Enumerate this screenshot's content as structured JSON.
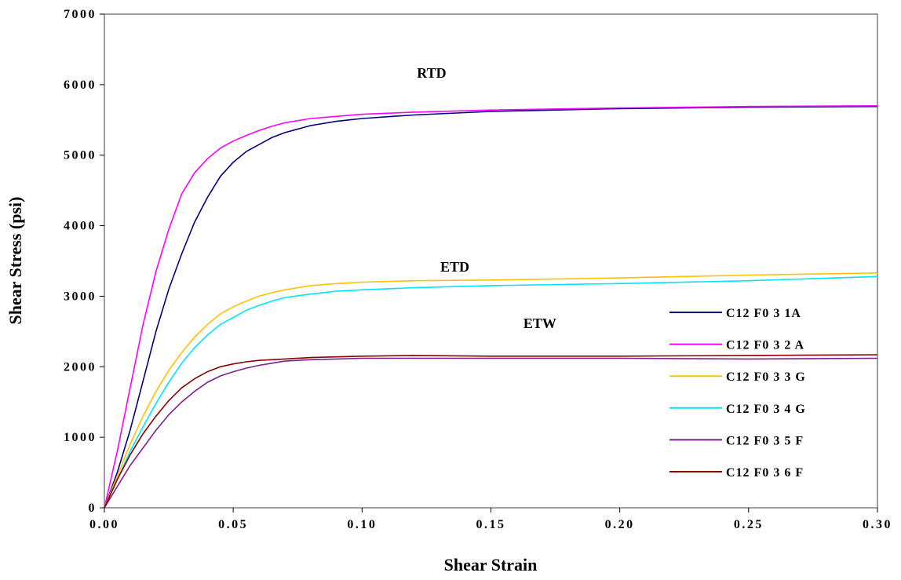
{
  "chart_data": {
    "type": "line",
    "title": "",
    "xlabel": "Shear Strain",
    "ylabel": "Shear Stress (psi)",
    "xlim": [
      0,
      0.3
    ],
    "ylim": [
      0,
      7000
    ],
    "x_ticks": [
      0,
      0.05,
      0.1,
      0.15,
      0.2,
      0.25,
      0.3
    ],
    "x_tick_labels": [
      "0.00",
      "0.05",
      "0.10",
      "0.15",
      "0.20",
      "0.25",
      "0.30"
    ],
    "y_ticks": [
      0,
      1000,
      2000,
      3000,
      4000,
      5000,
      6000,
      7000
    ],
    "y_tick_labels": [
      "0",
      "1000",
      "2000",
      "3000",
      "4000",
      "5000",
      "6000",
      "7000"
    ],
    "grid": false,
    "legend_position": "right",
    "annotations": [
      {
        "text": "RTD",
        "x": 0.127,
        "y": 6100
      },
      {
        "text": "ETD",
        "x": 0.136,
        "y": 3350
      },
      {
        "text": "ETW",
        "x": 0.169,
        "y": 2550
      }
    ],
    "series": [
      {
        "name": "C12 F0 3 1A",
        "color": "#000080",
        "x": [
          0,
          0.005,
          0.01,
          0.015,
          0.02,
          0.025,
          0.03,
          0.035,
          0.04,
          0.045,
          0.05,
          0.055,
          0.06,
          0.065,
          0.07,
          0.08,
          0.09,
          0.1,
          0.12,
          0.15,
          0.2,
          0.25,
          0.3
        ],
        "y": [
          0,
          500,
          1100,
          1800,
          2500,
          3100,
          3600,
          4050,
          4400,
          4700,
          4900,
          5050,
          5150,
          5250,
          5320,
          5420,
          5480,
          5520,
          5570,
          5620,
          5660,
          5680,
          5690
        ]
      },
      {
        "name": "C12 F0 3 2 A",
        "color": "#ff00ff",
        "x": [
          0,
          0.005,
          0.01,
          0.015,
          0.02,
          0.025,
          0.03,
          0.035,
          0.04,
          0.045,
          0.05,
          0.055,
          0.06,
          0.065,
          0.07,
          0.08,
          0.09,
          0.1,
          0.12,
          0.15,
          0.2,
          0.25,
          0.3
        ],
        "y": [
          0,
          800,
          1700,
          2600,
          3350,
          3950,
          4450,
          4750,
          4950,
          5100,
          5200,
          5280,
          5350,
          5410,
          5460,
          5520,
          5550,
          5580,
          5610,
          5640,
          5670,
          5690,
          5700
        ]
      },
      {
        "name": "C12 F0 3 3 G",
        "color": "#ffc000",
        "x": [
          0,
          0.005,
          0.01,
          0.015,
          0.02,
          0.025,
          0.03,
          0.035,
          0.04,
          0.045,
          0.05,
          0.055,
          0.06,
          0.065,
          0.07,
          0.08,
          0.09,
          0.1,
          0.12,
          0.15,
          0.2,
          0.25,
          0.3
        ],
        "y": [
          0,
          450,
          900,
          1300,
          1650,
          1950,
          2200,
          2420,
          2600,
          2750,
          2850,
          2930,
          3000,
          3050,
          3090,
          3150,
          3180,
          3200,
          3220,
          3230,
          3260,
          3300,
          3330
        ]
      },
      {
        "name": "C12 F0 3 4 G",
        "color": "#00e5ff",
        "x": [
          0,
          0.005,
          0.01,
          0.015,
          0.02,
          0.025,
          0.03,
          0.035,
          0.04,
          0.045,
          0.05,
          0.055,
          0.06,
          0.065,
          0.07,
          0.08,
          0.09,
          0.1,
          0.12,
          0.15,
          0.2,
          0.25,
          0.3
        ],
        "y": [
          0,
          400,
          800,
          1150,
          1480,
          1780,
          2050,
          2270,
          2450,
          2600,
          2700,
          2800,
          2870,
          2930,
          2980,
          3030,
          3070,
          3090,
          3120,
          3150,
          3180,
          3220,
          3280
        ]
      },
      {
        "name": "C12 F0 3 5 F",
        "color": "#7b1f8c",
        "x": [
          0,
          0.005,
          0.01,
          0.015,
          0.02,
          0.025,
          0.03,
          0.035,
          0.04,
          0.045,
          0.05,
          0.055,
          0.06,
          0.065,
          0.07,
          0.08,
          0.09,
          0.1,
          0.12,
          0.15,
          0.2,
          0.25,
          0.3
        ],
        "y": [
          0,
          300,
          600,
          850,
          1100,
          1320,
          1500,
          1650,
          1780,
          1870,
          1930,
          1980,
          2020,
          2050,
          2080,
          2100,
          2110,
          2120,
          2120,
          2120,
          2120,
          2110,
          2120
        ]
      },
      {
        "name": "C12 F0 3 6 F",
        "color": "#8b0000",
        "x": [
          0,
          0.005,
          0.01,
          0.015,
          0.02,
          0.025,
          0.03,
          0.035,
          0.04,
          0.045,
          0.05,
          0.055,
          0.06,
          0.065,
          0.07,
          0.08,
          0.09,
          0.1,
          0.12,
          0.15,
          0.2,
          0.25,
          0.3
        ],
        "y": [
          0,
          400,
          750,
          1050,
          1300,
          1520,
          1700,
          1830,
          1930,
          2000,
          2040,
          2070,
          2090,
          2100,
          2110,
          2130,
          2140,
          2150,
          2160,
          2150,
          2150,
          2160,
          2170
        ]
      }
    ]
  }
}
